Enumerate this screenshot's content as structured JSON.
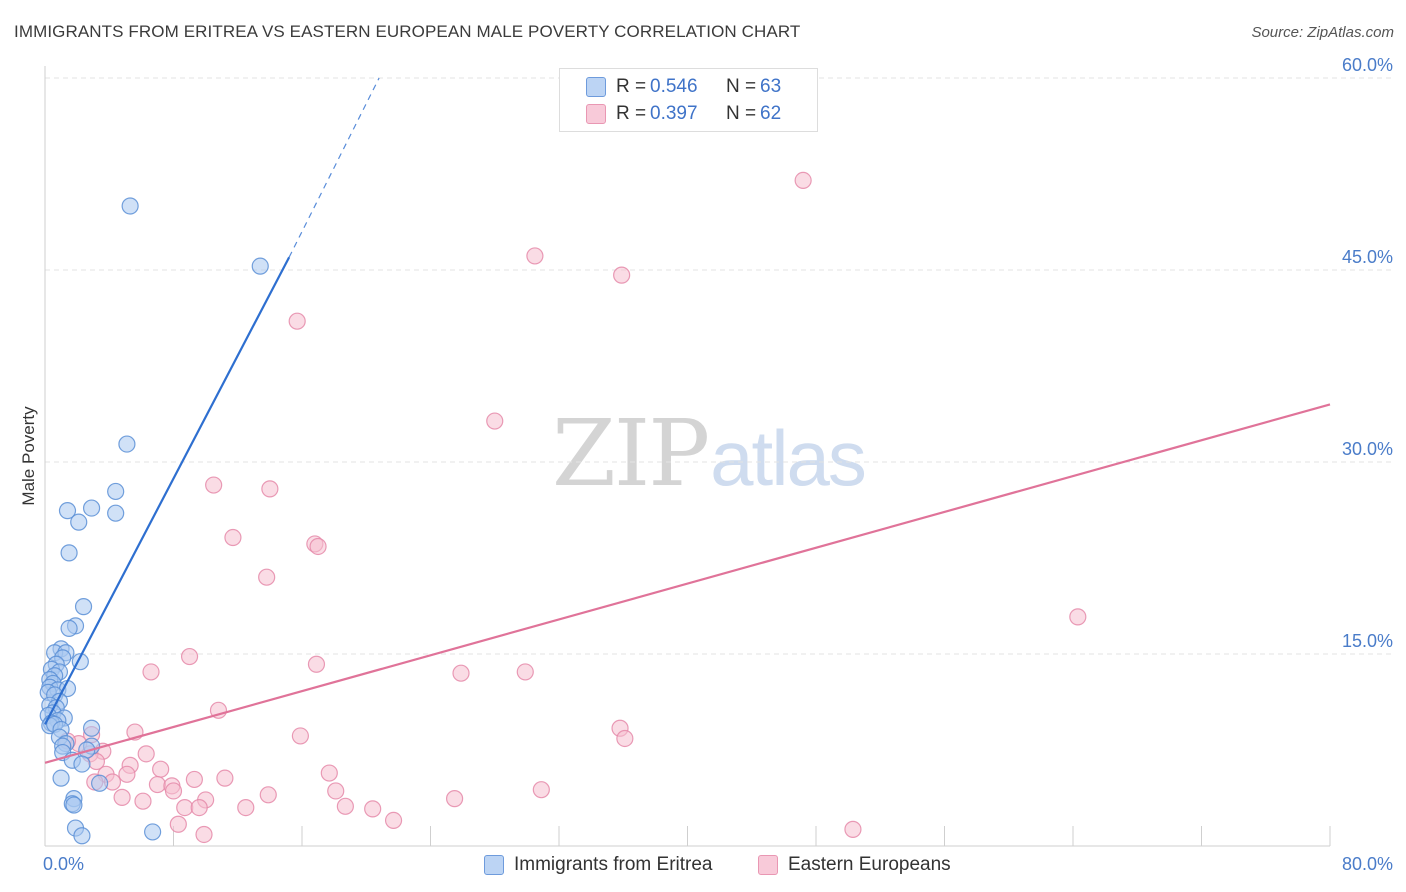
{
  "title": "IMMIGRANTS FROM ERITREA VS EASTERN EUROPEAN MALE POVERTY CORRELATION CHART",
  "source": "Source: ZipAtlas.com",
  "watermark": {
    "zip": "ZIP",
    "atlas": "atlas"
  },
  "colors": {
    "blue_fill": "#a9c8f1",
    "blue_stroke": "#5b8fd6",
    "blue_line": "#2e6fd0",
    "pink_fill": "#f6bfd0",
    "pink_stroke": "#e58aa9",
    "pink_line": "#e07399",
    "grid": "#e3e3e3",
    "axis_text": "#4a7cc9"
  },
  "legend": {
    "rows": [
      {
        "r_label": "R =",
        "r_value": "0.546",
        "n_label": "N =",
        "n_value": "63"
      },
      {
        "r_label": "R =",
        "r_value": "0.397",
        "n_label": "N =",
        "n_value": "62"
      }
    ]
  },
  "bottom_legend": [
    "Immigrants from Eritrea",
    "Eastern Europeans"
  ],
  "chart_data": {
    "type": "scatter",
    "title": "IMMIGRANTS FROM ERITREA VS EASTERN EUROPEAN MALE POVERTY CORRELATION CHART",
    "xlabel": "",
    "ylabel": "Male Poverty",
    "xlim": [
      0,
      80
    ],
    "ylim": [
      0,
      60
    ],
    "x_tick_labels": [
      "0.0%",
      "80.0%"
    ],
    "y_ticks": [
      15,
      30,
      45,
      60
    ],
    "y_tick_labels": [
      "15.0%",
      "30.0%",
      "45.0%",
      "60.0%"
    ],
    "grid": true,
    "series": [
      {
        "name": "Immigrants from Eritrea",
        "r": 0.546,
        "n": 63,
        "trend": {
          "x0": 0,
          "y0": 9.5,
          "x1": 15.2,
          "y1": 46.0,
          "dash_x1": 20.8,
          "dash_y1": 60.0
        },
        "points": [
          [
            5.3,
            50.0
          ],
          [
            13.4,
            45.3
          ],
          [
            5.1,
            31.4
          ],
          [
            4.4,
            27.7
          ],
          [
            2.9,
            26.4
          ],
          [
            4.4,
            26.0
          ],
          [
            1.4,
            26.2
          ],
          [
            2.1,
            25.3
          ],
          [
            1.5,
            22.9
          ],
          [
            2.4,
            18.7
          ],
          [
            1.9,
            17.2
          ],
          [
            1.5,
            17.0
          ],
          [
            1.0,
            15.4
          ],
          [
            0.6,
            15.1
          ],
          [
            1.3,
            15.1
          ],
          [
            2.2,
            14.4
          ],
          [
            1.1,
            14.7
          ],
          [
            0.7,
            14.2
          ],
          [
            0.4,
            13.8
          ],
          [
            0.9,
            13.6
          ],
          [
            0.6,
            13.3
          ],
          [
            0.3,
            13.0
          ],
          [
            0.5,
            12.7
          ],
          [
            0.3,
            12.4
          ],
          [
            0.8,
            12.2
          ],
          [
            1.4,
            12.3
          ],
          [
            0.2,
            12.0
          ],
          [
            0.6,
            11.8
          ],
          [
            0.9,
            11.3
          ],
          [
            0.3,
            11.0
          ],
          [
            0.7,
            10.8
          ],
          [
            0.5,
            10.4
          ],
          [
            0.2,
            10.2
          ],
          [
            1.2,
            10.0
          ],
          [
            0.8,
            9.8
          ],
          [
            0.4,
            9.6
          ],
          [
            0.3,
            9.4
          ],
          [
            0.6,
            9.5
          ],
          [
            1.0,
            9.1
          ],
          [
            2.9,
            9.2
          ],
          [
            0.9,
            8.5
          ],
          [
            1.3,
            8.0
          ],
          [
            1.1,
            7.8
          ],
          [
            2.9,
            7.8
          ],
          [
            2.6,
            7.5
          ],
          [
            1.1,
            7.3
          ],
          [
            1.7,
            6.7
          ],
          [
            2.3,
            6.4
          ],
          [
            3.4,
            4.9
          ],
          [
            1.0,
            5.3
          ],
          [
            1.8,
            3.7
          ],
          [
            1.7,
            3.3
          ],
          [
            1.8,
            3.2
          ],
          [
            1.9,
            1.4
          ],
          [
            2.3,
            0.8
          ],
          [
            6.7,
            1.1
          ]
        ]
      },
      {
        "name": "Eastern Europeans",
        "r": 0.397,
        "n": 62,
        "trend": {
          "x0": 0,
          "y0": 6.5,
          "x1": 80,
          "y1": 34.5
        },
        "points": [
          [
            47.2,
            52.0
          ],
          [
            30.5,
            46.1
          ],
          [
            35.9,
            44.6
          ],
          [
            15.7,
            41.0
          ],
          [
            28.0,
            33.2
          ],
          [
            10.5,
            28.2
          ],
          [
            14.0,
            27.9
          ],
          [
            11.7,
            24.1
          ],
          [
            16.8,
            23.6
          ],
          [
            17.0,
            23.4
          ],
          [
            13.8,
            21.0
          ],
          [
            64.3,
            17.9
          ],
          [
            9.0,
            14.8
          ],
          [
            16.9,
            14.2
          ],
          [
            6.6,
            13.6
          ],
          [
            25.9,
            13.5
          ],
          [
            29.9,
            13.6
          ],
          [
            10.8,
            10.6
          ],
          [
            5.6,
            8.9
          ],
          [
            15.9,
            8.6
          ],
          [
            35.8,
            9.2
          ],
          [
            36.1,
            8.4
          ],
          [
            2.9,
            8.7
          ],
          [
            2.1,
            8.0
          ],
          [
            1.4,
            8.2
          ],
          [
            3.6,
            7.4
          ],
          [
            6.3,
            7.2
          ],
          [
            2.8,
            7.2
          ],
          [
            3.2,
            6.6
          ],
          [
            5.3,
            6.3
          ],
          [
            7.2,
            6.0
          ],
          [
            3.8,
            5.6
          ],
          [
            5.1,
            5.6
          ],
          [
            17.7,
            5.7
          ],
          [
            4.2,
            5.0
          ],
          [
            3.1,
            5.0
          ],
          [
            9.3,
            5.2
          ],
          [
            11.2,
            5.3
          ],
          [
            7.0,
            4.8
          ],
          [
            7.9,
            4.7
          ],
          [
            8.0,
            4.3
          ],
          [
            18.1,
            4.3
          ],
          [
            30.9,
            4.4
          ],
          [
            4.8,
            3.8
          ],
          [
            6.1,
            3.5
          ],
          [
            13.9,
            4.0
          ],
          [
            10.0,
            3.6
          ],
          [
            25.5,
            3.7
          ],
          [
            8.7,
            3.0
          ],
          [
            9.6,
            3.0
          ],
          [
            12.5,
            3.0
          ],
          [
            18.7,
            3.1
          ],
          [
            20.4,
            2.9
          ],
          [
            21.7,
            2.0
          ],
          [
            8.3,
            1.7
          ],
          [
            9.9,
            0.9
          ],
          [
            50.3,
            1.3
          ]
        ]
      }
    ]
  }
}
